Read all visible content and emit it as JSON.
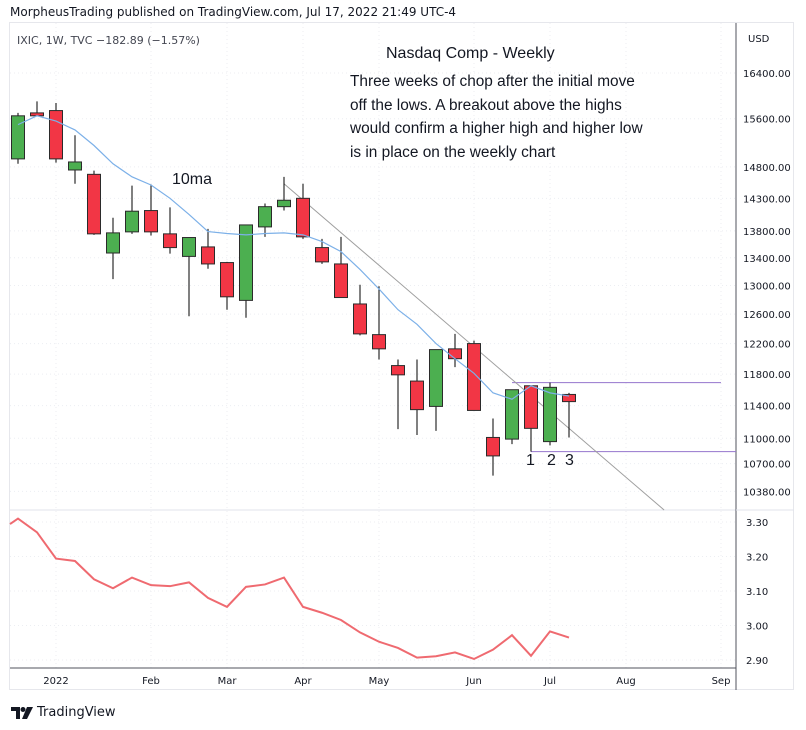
{
  "header": {
    "publisher": "MorpheusTrading published on TradingView.com, Jul 17, 2022 21:49 UTC-4",
    "legend": "IXIC, 1W, TVC  −182.89 (−1.57%)",
    "currency": "USD"
  },
  "annotations": {
    "title": "Nasdaq Comp - Weekly",
    "body": "Three weeks of chop after the initial move off the lows.  A breakout above the highs would confirm a higher high and higher low is in place on the weekly chart",
    "ma_label": "10ma",
    "counts": [
      "1",
      "2",
      "3"
    ]
  },
  "footer": {
    "brand": "TradingView",
    "logo_icon": "tradingview-logo-icon"
  },
  "colors": {
    "up": "#4caf50",
    "down": "#f23645",
    "ma": "#7cb0e8",
    "trend": "#9e9e9e",
    "levels": "#9575cd",
    "lower_line": "#ef6a70"
  },
  "chart_data": [
    {
      "type": "candlestick",
      "scale": "log",
      "ylim": [
        10200,
        16900
      ],
      "y_ticks": [
        "16400.00",
        "15600.00",
        "14800.00",
        "14300.00",
        "13800.00",
        "13400.00",
        "13000.00",
        "12600.00",
        "12200.00",
        "11800.00",
        "11400.00",
        "11000.00",
        "10700.00",
        "10380.00"
      ],
      "x_ticks": [
        {
          "label": "2022",
          "date": "2022-01-03"
        },
        {
          "label": "Feb",
          "date": "2022-02-07"
        },
        {
          "label": "Mar",
          "date": "2022-03-07"
        },
        {
          "label": "Apr",
          "date": "2022-04-04"
        },
        {
          "label": "May",
          "date": "2022-05-02"
        },
        {
          "label": "Jun",
          "date": "2022-06-06"
        },
        {
          "label": "Jul",
          "date": "2022-07-04"
        },
        {
          "label": "Aug",
          "date": "2022-08-01"
        },
        {
          "label": "Sep",
          "date": "2022-09-05"
        }
      ],
      "grid": true,
      "candles": [
        {
          "date": "2021-12-20",
          "o": 14930,
          "h": 15700,
          "l": 14850,
          "c": 15650
        },
        {
          "date": "2021-12-27",
          "o": 15700,
          "h": 15900,
          "l": 15650,
          "c": 15650
        },
        {
          "date": "2022-01-03",
          "o": 15740,
          "h": 15870,
          "l": 14870,
          "c": 14930
        },
        {
          "date": "2022-01-10",
          "o": 14750,
          "h": 15320,
          "l": 14530,
          "c": 14880
        },
        {
          "date": "2022-01-17",
          "o": 14680,
          "h": 14740,
          "l": 13740,
          "c": 13755
        },
        {
          "date": "2022-01-24",
          "o": 13470,
          "h": 14000,
          "l": 13090,
          "c": 13770
        },
        {
          "date": "2022-01-31",
          "o": 13785,
          "h": 14500,
          "l": 13755,
          "c": 14100
        },
        {
          "date": "2022-02-07",
          "o": 14110,
          "h": 14520,
          "l": 13730,
          "c": 13785
        },
        {
          "date": "2022-02-14",
          "o": 13755,
          "h": 14160,
          "l": 13460,
          "c": 13550
        },
        {
          "date": "2022-02-21",
          "o": 13420,
          "h": 13700,
          "l": 12570,
          "c": 13700
        },
        {
          "date": "2022-02-28",
          "o": 13560,
          "h": 13830,
          "l": 13240,
          "c": 13310
        },
        {
          "date": "2022-03-07",
          "o": 13330,
          "h": 13340,
          "l": 12660,
          "c": 12840
        },
        {
          "date": "2022-03-14",
          "o": 12790,
          "h": 13890,
          "l": 12550,
          "c": 13890
        },
        {
          "date": "2022-03-21",
          "o": 13860,
          "h": 14220,
          "l": 13710,
          "c": 14170
        },
        {
          "date": "2022-03-28",
          "o": 14170,
          "h": 14640,
          "l": 14110,
          "c": 14270
        },
        {
          "date": "2022-04-04",
          "o": 14300,
          "h": 14530,
          "l": 13680,
          "c": 13710
        },
        {
          "date": "2022-04-11",
          "o": 13550,
          "h": 13680,
          "l": 13310,
          "c": 13340
        },
        {
          "date": "2022-04-18",
          "o": 13310,
          "h": 13710,
          "l": 12830,
          "c": 12830
        },
        {
          "date": "2022-04-25",
          "o": 12740,
          "h": 13010,
          "l": 12310,
          "c": 12330
        },
        {
          "date": "2022-05-02",
          "o": 12320,
          "h": 12990,
          "l": 11990,
          "c": 12130
        },
        {
          "date": "2022-05-09",
          "o": 11910,
          "h": 11990,
          "l": 11110,
          "c": 11790
        },
        {
          "date": "2022-05-16",
          "o": 11710,
          "h": 11990,
          "l": 11040,
          "c": 11350
        },
        {
          "date": "2022-05-23",
          "o": 11390,
          "h": 12120,
          "l": 11090,
          "c": 12120
        },
        {
          "date": "2022-05-30",
          "o": 12130,
          "h": 12330,
          "l": 11890,
          "c": 12000
        },
        {
          "date": "2022-06-06",
          "o": 12200,
          "h": 12240,
          "l": 11340,
          "c": 11340
        },
        {
          "date": "2022-06-13",
          "o": 11010,
          "h": 11240,
          "l": 10560,
          "c": 10790
        },
        {
          "date": "2022-06-20",
          "o": 10990,
          "h": 11600,
          "l": 10930,
          "c": 11600
        },
        {
          "date": "2022-06-27",
          "o": 11650,
          "h": 11650,
          "l": 10840,
          "c": 11120
        },
        {
          "date": "2022-07-04",
          "o": 10960,
          "h": 11690,
          "l": 10915,
          "c": 11630
        },
        {
          "date": "2022-07-11",
          "o": 11540,
          "h": 11560,
          "l": 11010,
          "c": 11450
        }
      ],
      "ma10": [
        15500,
        15650,
        15560,
        15410,
        15150,
        14850,
        14640,
        14510,
        14300,
        14050,
        13790,
        13760,
        13740,
        13760,
        13770,
        13740,
        13640,
        13490,
        13230,
        12950,
        12660,
        12460,
        12200,
        12000,
        11810,
        11560,
        11480,
        11650,
        11560,
        11520
      ],
      "trendline": [
        {
          "date": "2022-03-28",
          "price": 14530
        },
        {
          "date": "2022-07-11",
          "price": 11120
        }
      ],
      "levels": [
        {
          "price": 11690,
          "from": "2022-06-20",
          "to": "2022-09-05"
        },
        {
          "price": 10840,
          "from": "2022-06-27",
          "to": "axis"
        }
      ]
    },
    {
      "type": "line",
      "ylim": [
        2.88,
        3.33
      ],
      "y_ticks": [
        "3.30",
        "3.20",
        "3.10",
        "3.00",
        "2.90"
      ],
      "x": [
        "2021-12-13",
        "2021-12-20",
        "2021-12-27",
        "2022-01-03",
        "2022-01-10",
        "2022-01-17",
        "2022-01-24",
        "2022-01-31",
        "2022-02-07",
        "2022-02-14",
        "2022-02-21",
        "2022-02-28",
        "2022-03-07",
        "2022-03-14",
        "2022-03-21",
        "2022-03-28",
        "2022-04-04",
        "2022-04-11",
        "2022-04-18",
        "2022-04-25",
        "2022-05-02",
        "2022-05-09",
        "2022-05-16",
        "2022-05-23",
        "2022-05-30",
        "2022-06-06",
        "2022-06-13",
        "2022-06-20",
        "2022-06-27",
        "2022-07-04",
        "2022-07-11"
      ],
      "values": [
        3.294,
        3.31,
        3.27,
        3.194,
        3.187,
        3.134,
        3.108,
        3.139,
        3.117,
        3.114,
        3.125,
        3.08,
        3.054,
        3.112,
        3.119,
        3.139,
        3.054,
        3.037,
        3.016,
        2.98,
        2.953,
        2.935,
        2.907,
        2.911,
        2.922,
        2.903,
        2.93,
        2.972,
        2.912,
        2.983,
        2.965
      ]
    }
  ]
}
